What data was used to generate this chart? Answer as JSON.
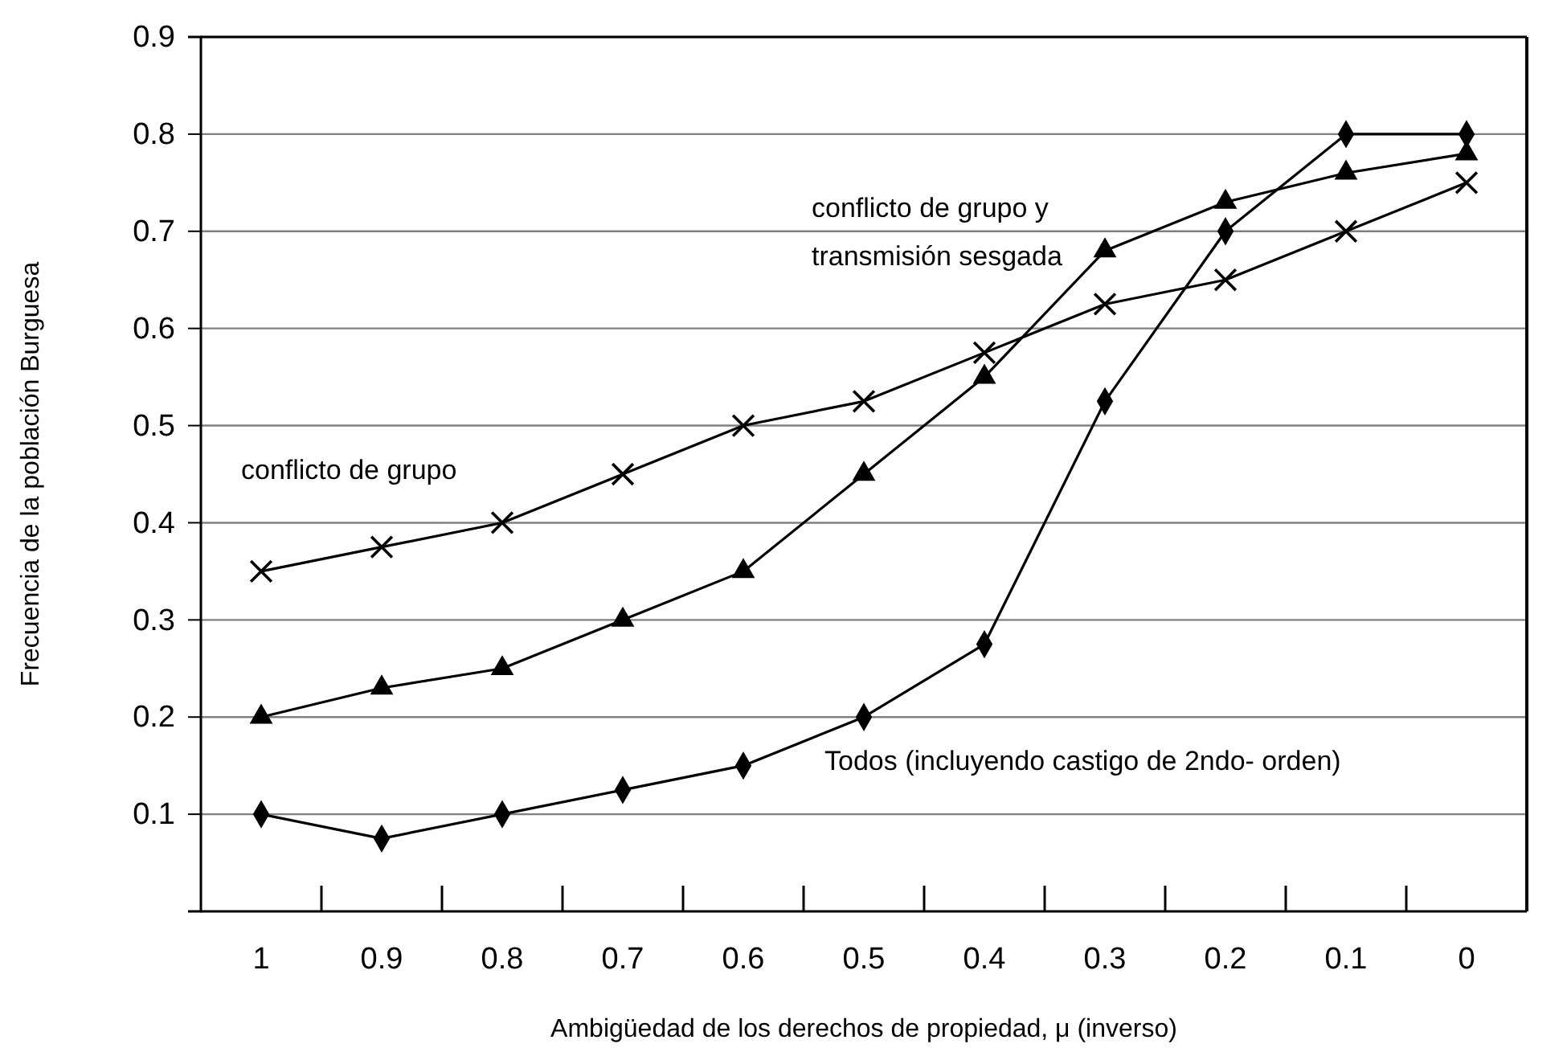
{
  "chart_data": {
    "type": "line",
    "xlabel": "Ambigüedad de los derechos de propiedad, μ (inverso)",
    "ylabel": "Frecuencia de la población Burguesa",
    "categories": [
      "1",
      "0.9",
      "0.8",
      "0.7",
      "0.6",
      "0.5",
      "0.4",
      "0.3",
      "0.2",
      "0.1",
      "0"
    ],
    "ylim": [
      0,
      0.9
    ],
    "yticks": [
      0.1,
      0.2,
      0.3,
      0.4,
      0.5,
      0.6,
      0.7,
      0.8,
      0.9
    ],
    "grid": "y",
    "series": [
      {
        "name": "conflicto de grupo",
        "color": "#000000",
        "marker": "cross",
        "values": [
          0.35,
          0.375,
          0.4,
          0.45,
          0.5,
          0.525,
          0.575,
          0.625,
          0.65,
          0.7,
          0.75
        ]
      },
      {
        "name": "conflicto de grupo y transmisión sesgada",
        "color": "#000000",
        "marker": "triangle",
        "values": [
          0.2,
          0.23,
          0.25,
          0.3,
          0.35,
          0.45,
          0.55,
          0.68,
          0.73,
          0.76,
          0.78
        ]
      },
      {
        "name": "Todos (incluyendo castigo de 2ndo- orden)",
        "color": "#000000",
        "marker": "diamond",
        "values": [
          0.1,
          0.075,
          0.1,
          0.125,
          0.15,
          0.2,
          0.275,
          0.525,
          0.7,
          0.8,
          0.8
        ]
      }
    ]
  }
}
